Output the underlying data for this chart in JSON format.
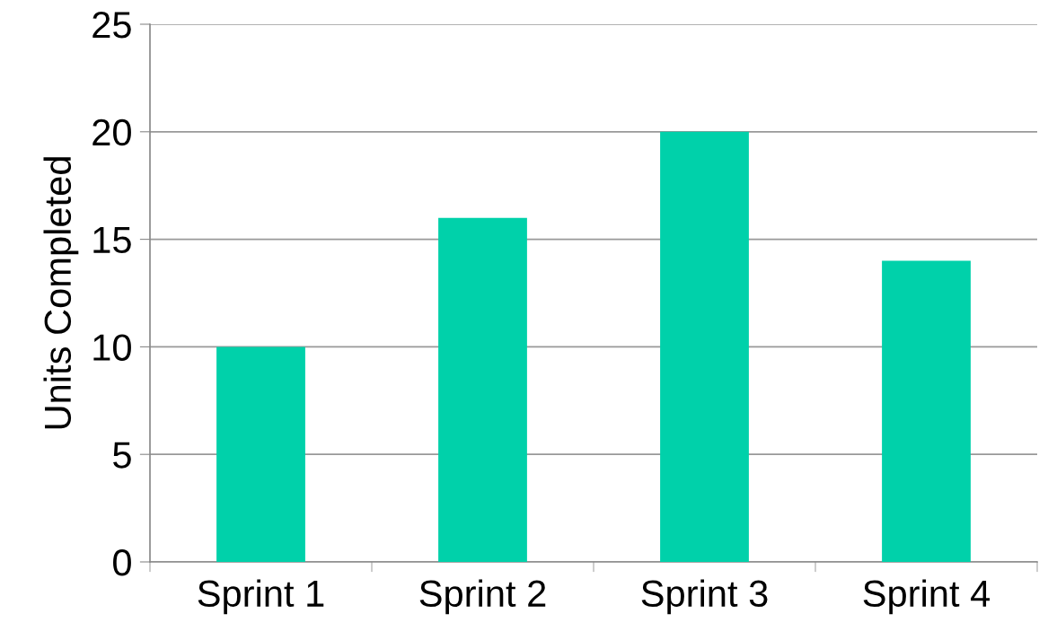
{
  "chart_data": {
    "type": "bar",
    "ylabel": "Units Completed",
    "categories": [
      "Sprint 1",
      "Sprint 2",
      "Sprint 3",
      "Sprint 4"
    ],
    "values": [
      10,
      16,
      20,
      14
    ],
    "color": "#00d1aa",
    "ylim": [
      0,
      25
    ],
    "yticks": [
      0,
      5,
      10,
      15,
      20,
      25
    ],
    "grid": "y",
    "legend": false
  }
}
